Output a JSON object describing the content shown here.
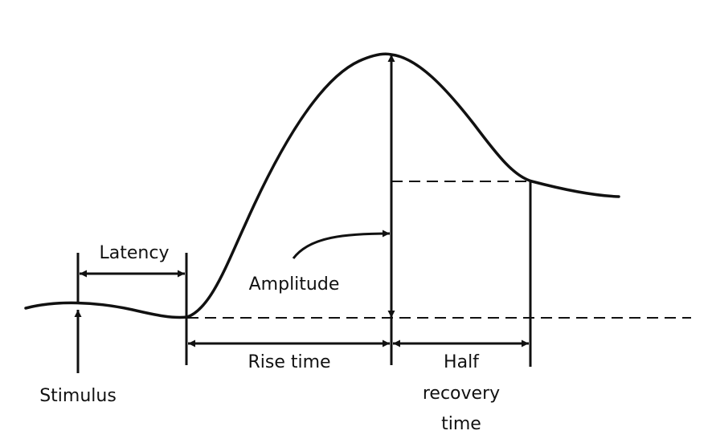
{
  "colors": {
    "background": "#ffffff",
    "ink": "#111111"
  },
  "labels": {
    "latency": "Latency",
    "amplitude": "Amplitude",
    "stimulus": "Stimulus",
    "rise_time": "Rise time",
    "half_recovery": [
      "Half",
      "recovery",
      "time"
    ]
  }
}
